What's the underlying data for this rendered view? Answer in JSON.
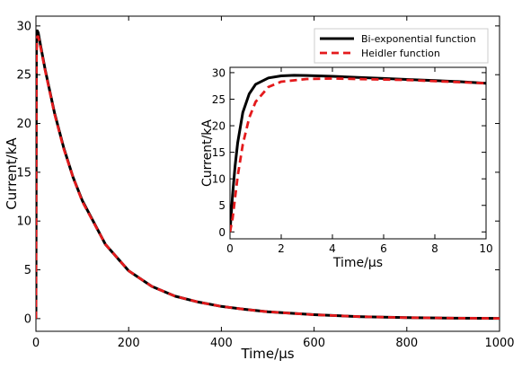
{
  "chart_data": [
    {
      "type": "line",
      "panel": "main",
      "xlabel": "Time/μs",
      "ylabel": "Current/kA",
      "xlim": [
        0,
        1000
      ],
      "ylim": [
        -1.3,
        31
      ],
      "x_ticks": [
        0,
        200,
        400,
        600,
        800,
        1000
      ],
      "y_ticks": [
        0,
        5,
        10,
        15,
        20,
        25,
        30
      ],
      "legend_position": "top-right",
      "series": [
        {
          "name": "Bi-exponential function",
          "color": "#000000",
          "style": "solid",
          "x": [
            0,
            1,
            2,
            3,
            5,
            10,
            20,
            40,
            60,
            80,
            100,
            150,
            200,
            250,
            300,
            350,
            400,
            450,
            500,
            600,
            700,
            800,
            900,
            1000
          ],
          "y": [
            0,
            27.5,
            29.3,
            29.5,
            29.3,
            28.0,
            25.5,
            21.1,
            17.5,
            14.5,
            12.1,
            7.6,
            4.9,
            3.3,
            2.3,
            1.7,
            1.25,
            0.95,
            0.7,
            0.4,
            0.2,
            0.1,
            0.05,
            0.02
          ]
        },
        {
          "name": "Heidler function",
          "color": "#e41a1c",
          "style": "dashed",
          "x": [
            0,
            1,
            2,
            3,
            5,
            10,
            20,
            40,
            60,
            80,
            100,
            150,
            200,
            250,
            300,
            350,
            400,
            450,
            500,
            600,
            700,
            800,
            900,
            1000
          ],
          "y": [
            0,
            26.0,
            28.5,
            28.9,
            28.9,
            27.8,
            25.4,
            21.0,
            17.4,
            14.5,
            12.0,
            7.6,
            4.9,
            3.3,
            2.3,
            1.7,
            1.25,
            0.95,
            0.7,
            0.4,
            0.2,
            0.1,
            0.05,
            0.02
          ]
        }
      ]
    },
    {
      "type": "line",
      "panel": "inset",
      "xlabel": "Time/μs",
      "ylabel": "Current/kA",
      "xlim": [
        0,
        10
      ],
      "ylim": [
        -1.3,
        31
      ],
      "x_ticks": [
        0,
        2,
        4,
        6,
        8,
        10
      ],
      "y_ticks": [
        0,
        5,
        10,
        15,
        20,
        25,
        30
      ],
      "series": [
        {
          "name": "Bi-exponential function",
          "color": "#000000",
          "style": "solid",
          "x": [
            0,
            0.1,
            0.2,
            0.3,
            0.5,
            0.75,
            1.0,
            1.5,
            2.0,
            2.5,
            3.0,
            4.0,
            5.0,
            6.0,
            7.0,
            8.0,
            9.0,
            10.0
          ],
          "y": [
            0,
            7.0,
            12.5,
            16.8,
            22.5,
            26.0,
            27.8,
            29.0,
            29.4,
            29.5,
            29.45,
            29.3,
            29.1,
            28.9,
            28.7,
            28.5,
            28.3,
            28.0
          ]
        },
        {
          "name": "Heidler function",
          "color": "#e41a1c",
          "style": "dashed",
          "x": [
            0,
            0.1,
            0.2,
            0.3,
            0.5,
            0.75,
            1.0,
            1.5,
            2.0,
            3.0,
            4.0,
            5.0,
            6.0,
            7.0,
            8.0,
            9.0,
            10.0
          ],
          "y": [
            0,
            2.5,
            6.5,
            10.5,
            16.5,
            21.5,
            24.5,
            27.3,
            28.3,
            28.8,
            28.9,
            28.8,
            28.7,
            28.6,
            28.4,
            28.2,
            28.0
          ]
        }
      ]
    }
  ]
}
